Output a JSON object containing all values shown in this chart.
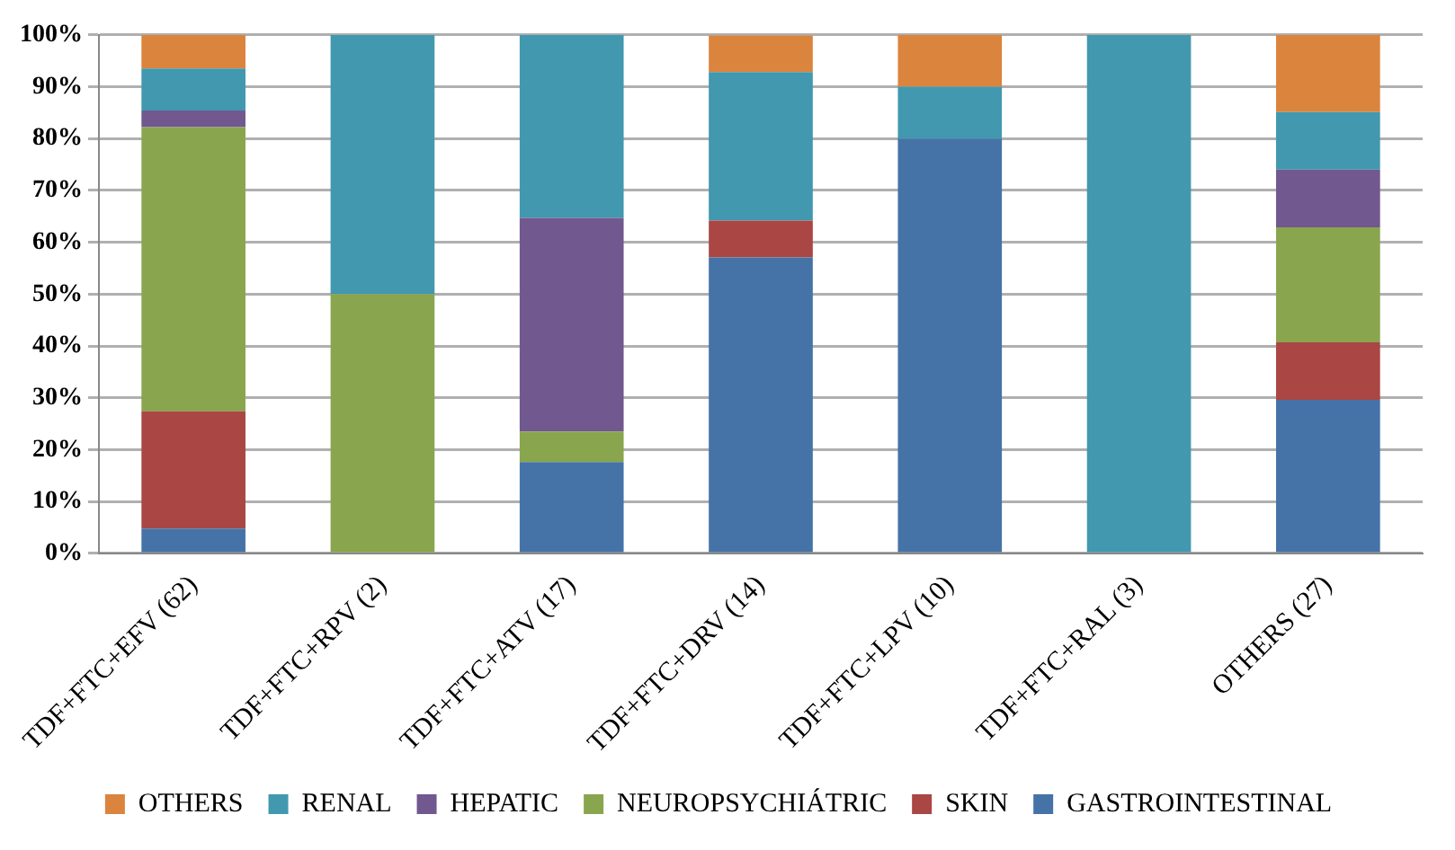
{
  "chart_data": {
    "type": "bar",
    "stacked": true,
    "categories": [
      "TDF+FTC+EFV (62)",
      "TDF+FTC+RPV (2)",
      "TDF+FTC+ATV (17)",
      "TDF+FTC+DRV (14)",
      "TDF+FTC+LPV (10)",
      "TDF+FTC+RAL (3)",
      "OTHERS (27)"
    ],
    "series": [
      {
        "name": "GASTROINTESTINAL",
        "color": "#4573a7",
        "values": [
          4.8,
          0,
          17.6,
          57.1,
          80,
          0,
          29.6
        ]
      },
      {
        "name": "SKIN",
        "color": "#aa4643",
        "values": [
          22.6,
          0,
          0,
          7.1,
          0,
          0,
          11.1
        ]
      },
      {
        "name": "NEUROPSYCHIÁTRIC",
        "color": "#89a54e",
        "values": [
          54.8,
          50,
          5.9,
          0,
          0,
          0,
          22.2
        ]
      },
      {
        "name": "HEPATIC",
        "color": "#71588f",
        "values": [
          3.2,
          0,
          41.2,
          0,
          0,
          0,
          11.1
        ]
      },
      {
        "name": "RENAL",
        "color": "#4198af",
        "values": [
          8.1,
          50,
          35.3,
          28.6,
          10,
          100,
          11.1
        ]
      },
      {
        "name": "OTHERS",
        "color": "#db843d",
        "values": [
          6.5,
          0,
          0,
          7.1,
          10,
          0,
          14.9
        ]
      }
    ],
    "ylim": [
      0,
      100
    ],
    "yticks": [
      {
        "value": 0,
        "label": "0%"
      },
      {
        "value": 10,
        "label": "10%"
      },
      {
        "value": 20,
        "label": "20%"
      },
      {
        "value": 30,
        "label": "30%"
      },
      {
        "value": 40,
        "label": "40%"
      },
      {
        "value": 50,
        "label": "50%"
      },
      {
        "value": 60,
        "label": "60%"
      },
      {
        "value": 70,
        "label": "70%"
      },
      {
        "value": 80,
        "label": "80%"
      },
      {
        "value": 90,
        "label": "90%"
      },
      {
        "value": 100,
        "label": "100%"
      }
    ],
    "grid": "y",
    "legend": "bottom"
  }
}
